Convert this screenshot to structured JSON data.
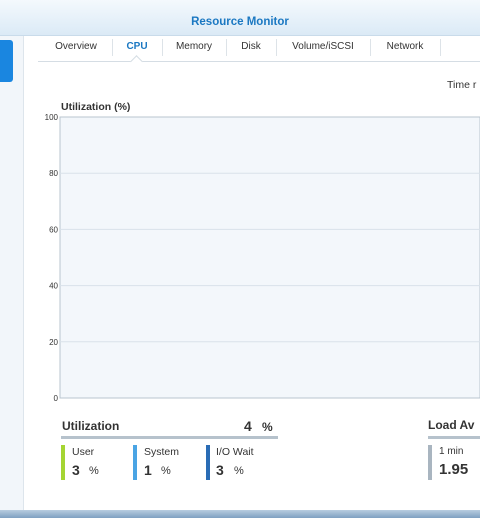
{
  "window": {
    "title": "Resource Monitor"
  },
  "tabs": [
    {
      "label": "Overview",
      "active": false
    },
    {
      "label": "CPU",
      "active": true
    },
    {
      "label": "Memory",
      "active": false
    },
    {
      "label": "Disk",
      "active": false
    },
    {
      "label": "Volume/iSCSI",
      "active": false
    },
    {
      "label": "Network",
      "active": false
    }
  ],
  "time_range_label": "Time r",
  "chart_data": {
    "type": "area",
    "title": "Utilization (%)",
    "xlabel": "",
    "ylabel": "",
    "ylim": [
      0,
      100
    ],
    "yticks": [
      0,
      20,
      40,
      60,
      80,
      100
    ],
    "grid": true,
    "colors": {
      "plot_background": "#f3f7fb",
      "grid": "#d9e2ea",
      "axis": "#b8c4cf"
    },
    "series": []
  },
  "utilization": {
    "title": "Utilization",
    "total": "4",
    "unit": "%",
    "metrics": [
      {
        "label": "User",
        "value": "3",
        "unit": "%",
        "color": "#a5d533"
      },
      {
        "label": "System",
        "value": "1",
        "unit": "%",
        "color": "#4aa4e4"
      },
      {
        "label": "I/O Wait",
        "value": "3",
        "unit": "%",
        "color": "#2a6cb5"
      }
    ]
  },
  "load_average": {
    "title": "Load Av",
    "items": [
      {
        "label": "1 min",
        "value": "1.95",
        "color": "#a9b5c0"
      }
    ]
  }
}
